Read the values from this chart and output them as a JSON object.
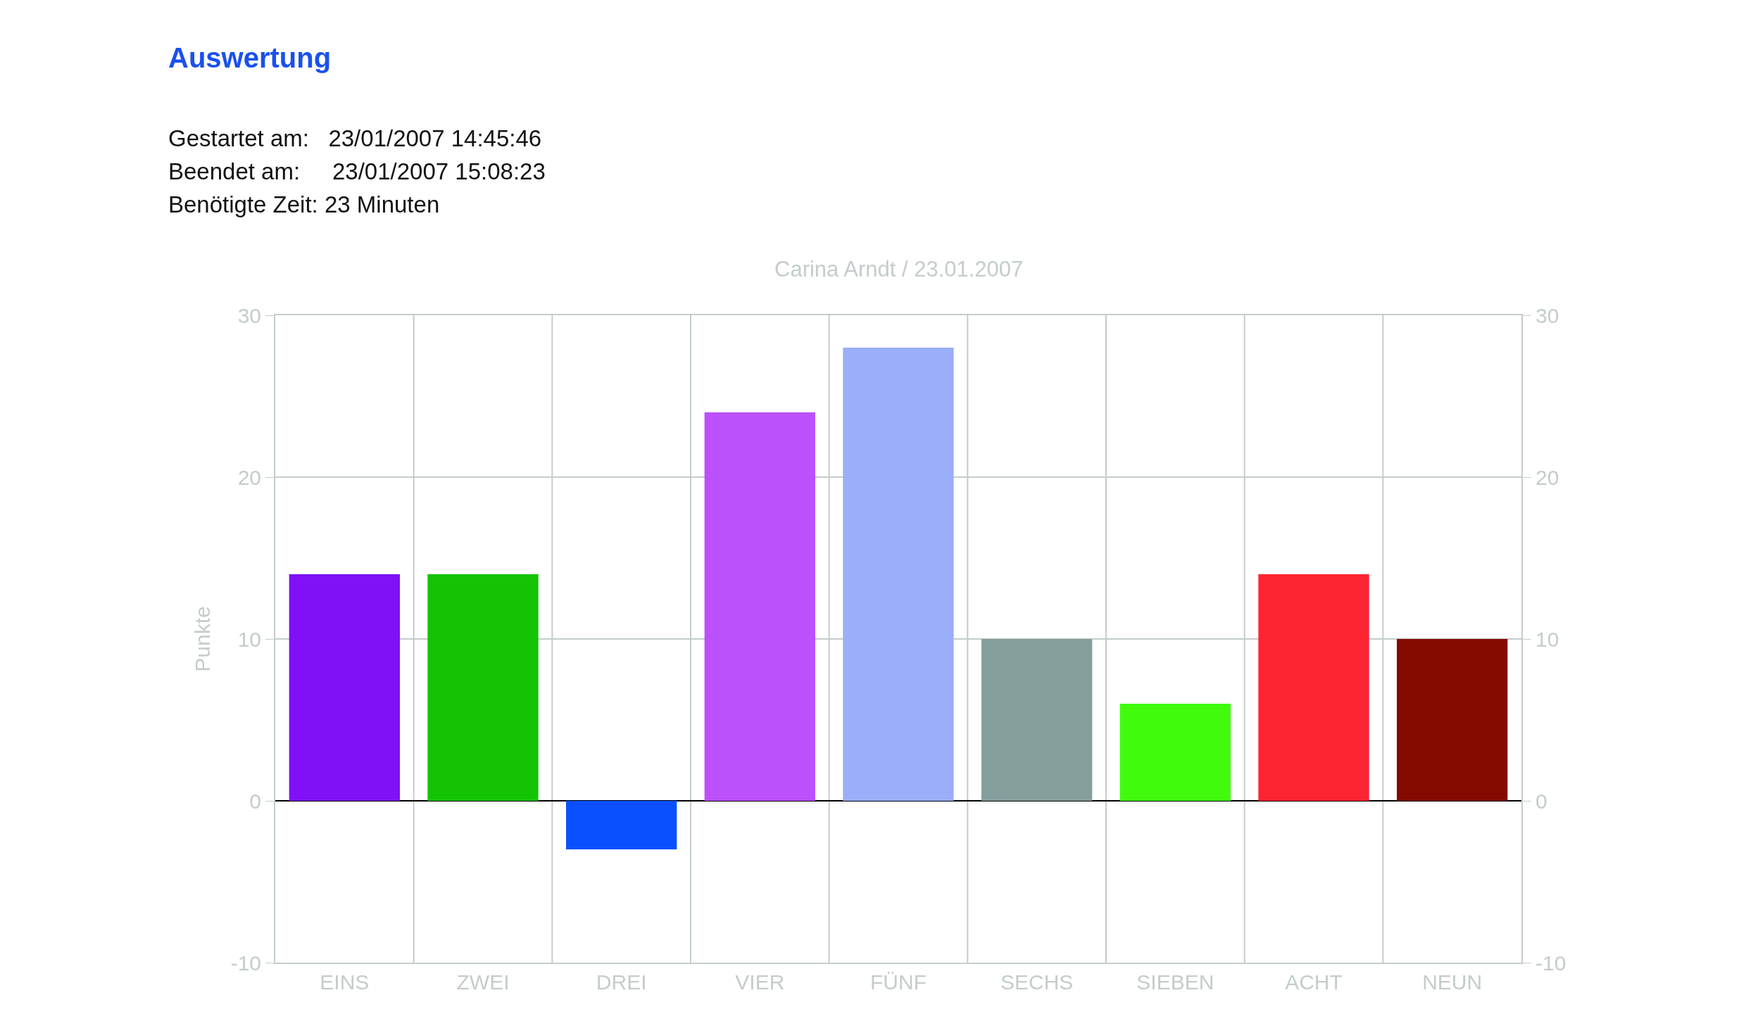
{
  "chart_data": {
    "type": "bar",
    "title": "Auswertung",
    "subtitle": "Carina Arndt / 23.01.2007",
    "annotations": [
      "Gestartet am:   23/01/2007 14:45:46",
      "Beendet am:     23/01/2007 15:08:23",
      "Benötigte Zeit: 23 Minuten"
    ],
    "ylabel": "Punkte",
    "categories": [
      "EINS",
      "ZWEI",
      "DREI",
      "VIER",
      "FÜNF",
      "SECHS",
      "SIEBEN",
      "ACHT",
      "NEUN"
    ],
    "values": [
      14,
      14,
      -3,
      24,
      28,
      10,
      6,
      14,
      10
    ],
    "colors": [
      "#8010f5",
      "#14c404",
      "#0a50ff",
      "#bb50fd",
      "#9aaefa",
      "#849e9c",
      "#40fc0c",
      "#fe2432",
      "#840a00"
    ],
    "ylim": [
      -10,
      30
    ],
    "yticks": [
      -10,
      0,
      10,
      20,
      30
    ],
    "y2lim": [
      -10,
      30
    ],
    "y2ticks": [
      -10,
      0,
      10,
      20,
      30
    ],
    "grid": true
  }
}
